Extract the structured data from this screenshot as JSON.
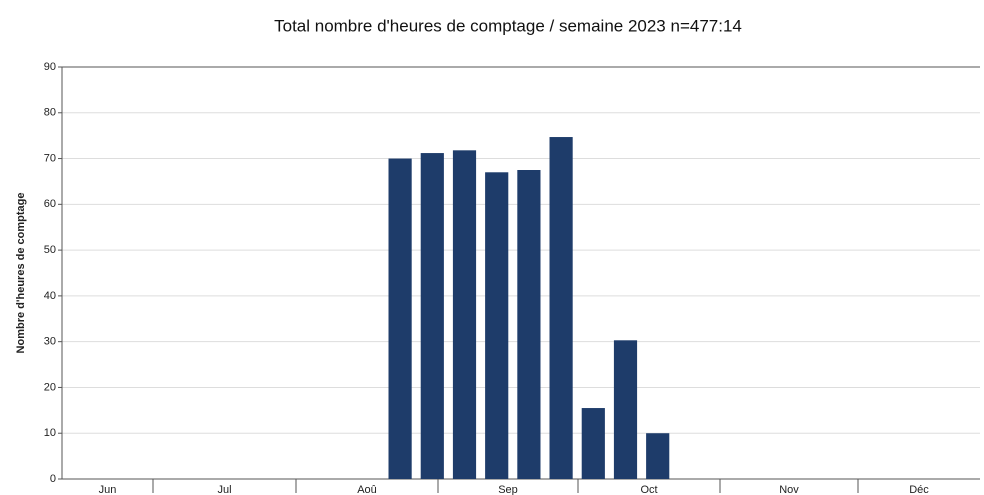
{
  "chart_data": {
    "type": "bar",
    "title": "Total nombre d'heures de comptage / semaine 2023 n=477:14",
    "y_label": "Nombre d'heures de comptage",
    "categories": [
      null,
      null,
      null,
      null,
      null,
      null,
      null,
      null,
      null,
      null,
      null,
      null,
      null,
      null,
      null,
      null,
      null,
      null,
      null,
      null,
      null,
      null,
      null,
      null,
      null,
      null,
      null,
      null
    ],
    "values": [
      0,
      0,
      0,
      0,
      0,
      0,
      0,
      0,
      0,
      0,
      70,
      71.2,
      71.8,
      67,
      67.5,
      74.7,
      15.5,
      30.3,
      10,
      0,
      0,
      0,
      0,
      0,
      0,
      0,
      0,
      0
    ],
    "x_groups": [
      "Jun",
      "Jul",
      "Aoû",
      "Sep",
      "Oct",
      "Nov",
      "Déc"
    ],
    "color": "#1e3c6a",
    "ylim": [
      0,
      90
    ],
    "yticks": [
      0,
      10,
      20,
      30,
      40,
      50,
      60,
      70,
      80,
      90
    ],
    "grid": true
  }
}
